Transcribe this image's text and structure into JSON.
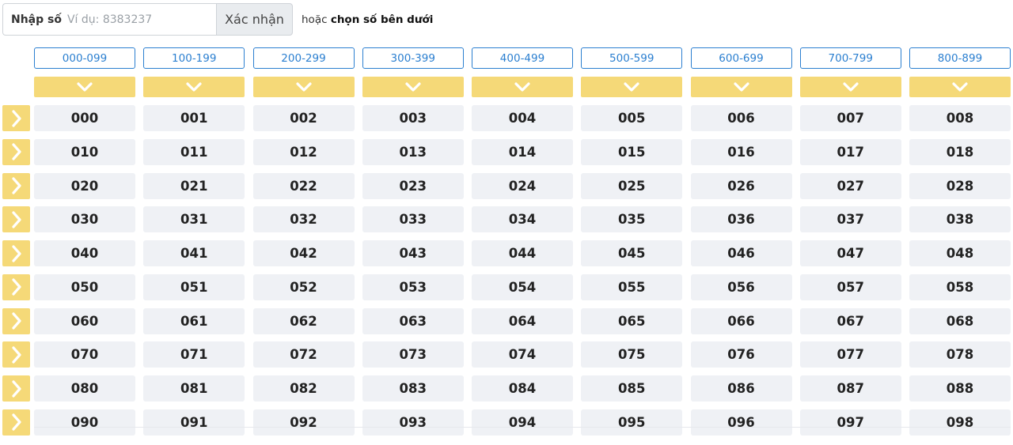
{
  "search": {
    "label": "Nhập số",
    "placeholder": "Ví dụ: 8383237",
    "value": "",
    "confirm_label": "Xác nhận",
    "or_text": "hoặc",
    "or_bold": "chọn số bên dưới"
  },
  "ranges": [
    "000-099",
    "100-199",
    "200-299",
    "300-399",
    "400-499",
    "500-599",
    "600-699",
    "700-799",
    "800-899"
  ],
  "icons": {
    "column_toggle": "chevron-down-icon",
    "row_toggle": "chevron-right-icon"
  },
  "colors": {
    "accent_yellow": "#f5d978",
    "link_blue": "#2b7fd0",
    "cell_bg": "#eff1f5"
  },
  "grid": [
    [
      "000",
      "001",
      "002",
      "003",
      "004",
      "005",
      "006",
      "007",
      "008"
    ],
    [
      "010",
      "011",
      "012",
      "013",
      "014",
      "015",
      "016",
      "017",
      "018"
    ],
    [
      "020",
      "021",
      "022",
      "023",
      "024",
      "025",
      "026",
      "027",
      "028"
    ],
    [
      "030",
      "031",
      "032",
      "033",
      "034",
      "035",
      "036",
      "037",
      "038"
    ],
    [
      "040",
      "041",
      "042",
      "043",
      "044",
      "045",
      "046",
      "047",
      "048"
    ],
    [
      "050",
      "051",
      "052",
      "053",
      "054",
      "055",
      "056",
      "057",
      "058"
    ],
    [
      "060",
      "061",
      "062",
      "063",
      "064",
      "065",
      "066",
      "067",
      "068"
    ],
    [
      "070",
      "071",
      "072",
      "073",
      "074",
      "075",
      "076",
      "077",
      "078"
    ],
    [
      "080",
      "081",
      "082",
      "083",
      "084",
      "085",
      "086",
      "087",
      "088"
    ],
    [
      "090",
      "091",
      "092",
      "093",
      "094",
      "095",
      "096",
      "097",
      "098"
    ]
  ]
}
